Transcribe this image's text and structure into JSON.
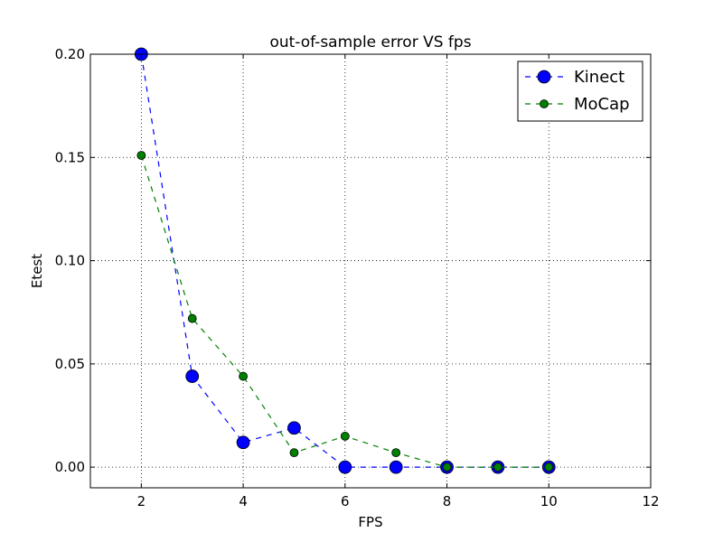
{
  "chart_data": {
    "type": "line",
    "title": "out-of-sample error VS fps",
    "xlabel": "FPS",
    "ylabel": "Etest",
    "xlim": [
      1,
      12
    ],
    "ylim": [
      -0.01,
      0.2
    ],
    "xticks": [
      2,
      4,
      6,
      8,
      10,
      12
    ],
    "yticks": [
      0.0,
      0.05,
      0.1,
      0.15,
      0.2
    ],
    "xtick_labels": [
      "2",
      "4",
      "6",
      "8",
      "10",
      "12"
    ],
    "ytick_labels": [
      "0.00",
      "0.05",
      "0.10",
      "0.15",
      "0.20"
    ],
    "grid": true,
    "legend_position": "top-right",
    "x": [
      2,
      3,
      4,
      5,
      6,
      7,
      8,
      9,
      10
    ],
    "series": [
      {
        "name": "Kinect",
        "values": [
          0.2,
          0.044,
          0.012,
          0.019,
          0.0,
          0.0,
          0.0,
          0.0,
          0.0
        ],
        "color": "#0000ff",
        "marker": "circle",
        "line_style": "dashed"
      },
      {
        "name": "MoCap",
        "values": [
          0.151,
          0.072,
          0.044,
          0.007,
          0.015,
          0.007,
          0.0,
          0.0,
          0.0
        ],
        "color": "#008000",
        "marker": "circle",
        "line_style": "dashed"
      }
    ]
  }
}
